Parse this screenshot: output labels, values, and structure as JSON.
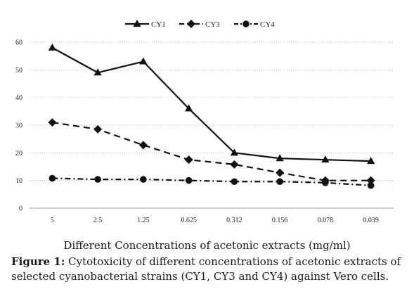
{
  "chart_data": {
    "type": "line",
    "categories": [
      "5",
      "2.5",
      "1.25",
      "0.625",
      "0.312",
      "0.156",
      "0.078",
      "0.039"
    ],
    "series": [
      {
        "name": "CY1",
        "values": [
          58,
          49,
          53,
          36,
          20,
          18,
          17.5,
          17
        ],
        "style": "solid",
        "marker": "triangle"
      },
      {
        "name": "CY3",
        "values": [
          31,
          28.5,
          22.8,
          17.5,
          15.8,
          12.8,
          10,
          10
        ],
        "style": "dashed",
        "marker": "diamond"
      },
      {
        "name": "CY4",
        "values": [
          10.8,
          10.4,
          10.4,
          10,
          9.6,
          9.6,
          9.2,
          8.2
        ],
        "style": "dash-dot",
        "marker": "circle"
      }
    ],
    "yticks": [
      "0",
      "10",
      "20",
      "30",
      "40",
      "50",
      "60"
    ],
    "ylim": [
      0,
      60
    ],
    "grid": "horizontal-dotted",
    "legend_position": "top-center",
    "xlabel": "Different Concentrations of acetonic extracts (mg/ml)",
    "ylabel": "",
    "title": ""
  },
  "caption": {
    "label": "Figure 1:",
    "text": " Cytotoxicity of different concentrations of acetonic extracts of selected cyanobacterial strains (CY1, CY3 and CY4) against Vero cells."
  }
}
